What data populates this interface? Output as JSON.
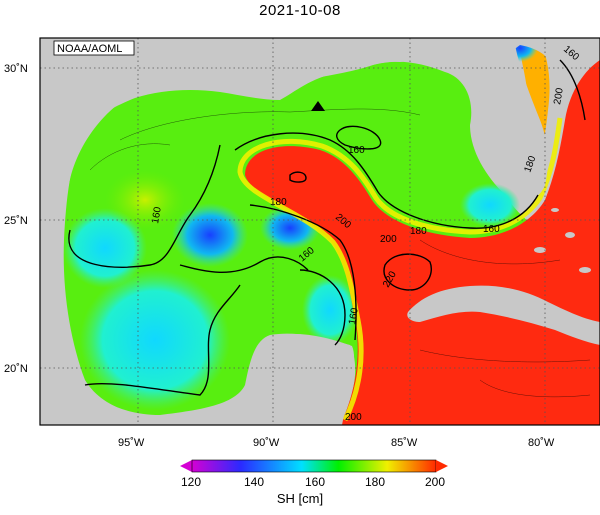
{
  "title": "2021-10-08",
  "credit": "NOAA/AOML",
  "lat_labels": [
    "30˚N",
    "25˚N",
    "20˚N"
  ],
  "lon_labels": [
    "95˚W",
    "90˚W",
    "85˚W",
    "80˚W"
  ],
  "contour_labels": [
    "160",
    "160",
    "160",
    "160",
    "160",
    "160",
    "180",
    "180",
    "180",
    "200",
    "200",
    "200",
    "200",
    "220"
  ],
  "colorbar": {
    "ticks": [
      "120",
      "140",
      "160",
      "180",
      "200"
    ],
    "label": "SH [cm]",
    "colors": [
      "#d400d4",
      "#2a2aff",
      "#00e0ff",
      "#00f000",
      "#f0f000",
      "#ff2a00"
    ]
  },
  "marker": "triangle-marker",
  "colors": {
    "land": "#c8c8c8",
    "warm": "#ff2a10",
    "mid": "#7cf000",
    "cool": "#20f0e0",
    "blue": "#2060ff"
  }
}
